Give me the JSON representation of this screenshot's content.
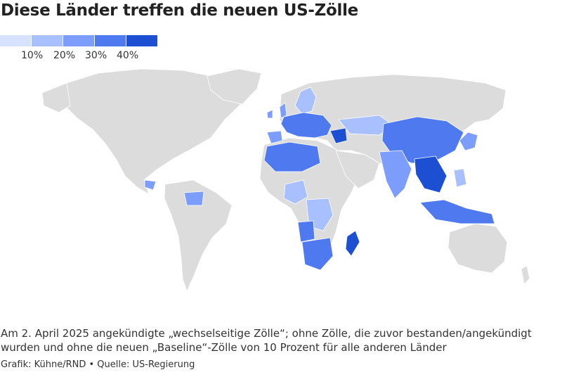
{
  "title": "Diese Länder treffen die neuen US-Zölle",
  "legend": {
    "colors": [
      "#d6e2ff",
      "#a9c0ff",
      "#7c9dfb",
      "#4f79ef",
      "#1d4fd2"
    ],
    "labels": [
      "10%",
      "20%",
      "30%",
      "40%"
    ]
  },
  "map": {
    "land_color": "#dcdcdc",
    "border_color": "#ffffff"
  },
  "caption": "Am 2. April 2025 angekündigte „wechselseitige Zölle“; ohne Zölle, die zuvor bestanden/angekündigt wurden und ohne die neuen „Baseline“-Zölle von 10 Prozent für alle anderen Länder",
  "source": "Grafik: Kühne/RND • Quelle: US-Regierung"
}
